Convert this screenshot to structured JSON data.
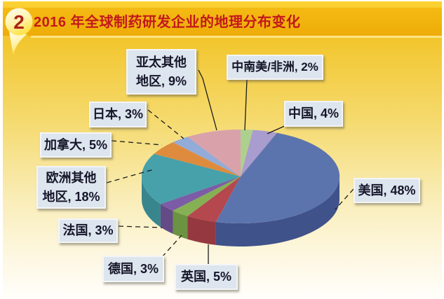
{
  "page": {
    "badge": "2",
    "title": "2016 年全球制药研发企业的地理分布变化"
  },
  "chart_data": {
    "type": "pie",
    "style": "3d-pie",
    "title": "2016 年全球制药研发企业的地理分布变化",
    "unit": "%",
    "start_angle_deg": 0,
    "direction": "clockwise",
    "legend_position": "callout-labels",
    "total": 100,
    "slices": [
      {
        "name": "中南美/非洲",
        "value": 2,
        "label": "中南美/非洲, 2%",
        "color": "#aed08e",
        "side_color": "#8fb26e"
      },
      {
        "name": "中国",
        "value": 4,
        "label": "中国, 4%",
        "color": "#a99cce",
        "side_color": "#8b7db2"
      },
      {
        "name": "美国",
        "value": 48,
        "label": "美国, 48%",
        "color": "#5c74ae",
        "side_color": "#40528a"
      },
      {
        "name": "英国",
        "value": 5,
        "label": "英国, 5%",
        "color": "#b5474e",
        "side_color": "#95383f"
      },
      {
        "name": "德国",
        "value": 3,
        "label": "德国, 3%",
        "color": "#86b054",
        "side_color": "#6b9341"
      },
      {
        "name": "法国",
        "value": 3,
        "label": "法国, 3%",
        "color": "#7c5ca6",
        "side_color": "#644a87"
      },
      {
        "name": "欧洲其他地区",
        "value": 18,
        "label": "欧洲其他地区, 18%",
        "color": "#46a1ab",
        "side_color": "#38858e"
      },
      {
        "name": "加拿大",
        "value": 5,
        "label": "加拿大, 5%",
        "color": "#df8b3e",
        "side_color": "#b96f2d"
      },
      {
        "name": "日本",
        "value": 3,
        "label": "日本, 3%",
        "color": "#93abd8",
        "side_color": "#7689b8"
      },
      {
        "name": "亚太其他地区",
        "value": 9,
        "label": "亚太其他地区, 9%",
        "color": "#d9a2aa",
        "side_color": "#b78389"
      }
    ]
  }
}
